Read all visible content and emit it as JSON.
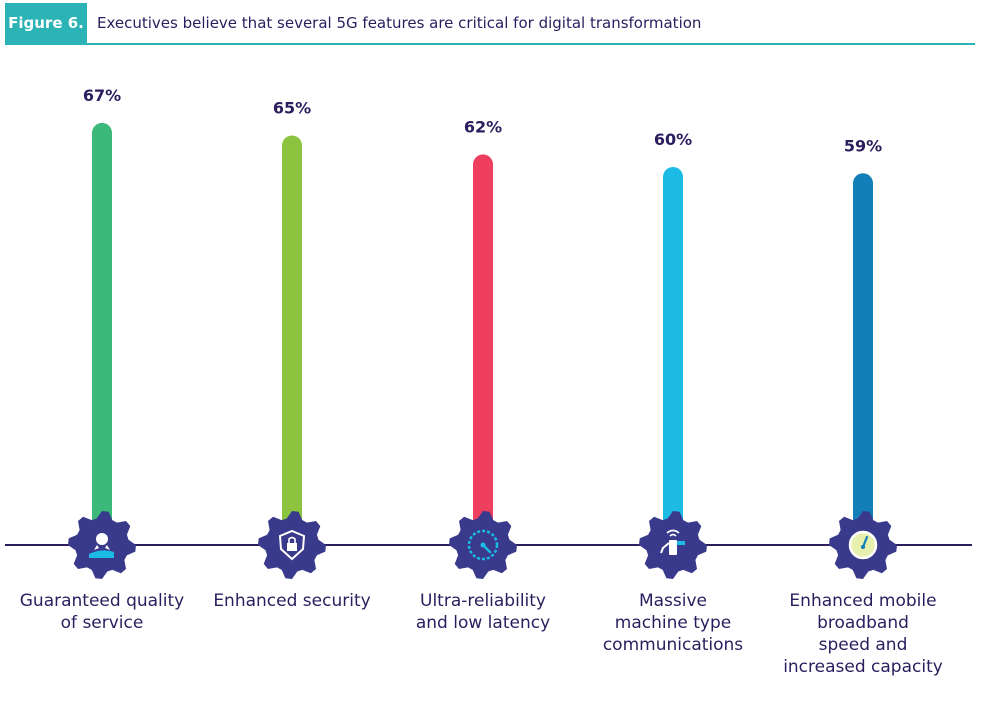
{
  "figure": {
    "tag": "Figure 6.",
    "title": "Executives believe that several 5G features are critical for digital transformation"
  },
  "chart_data": {
    "type": "bar",
    "title": "Executives believe that several 5G features are critical for digital transformation",
    "unit": "%",
    "categories": [
      "Guaranteed quality of service",
      "Enhanced security",
      "Ultra-reliability and low latency",
      "Massive machine type communications",
      "Enhanced mobile broadband speed and increased capacity"
    ],
    "values": [
      67,
      65,
      62,
      60,
      59
    ],
    "value_labels": [
      "67%",
      "65%",
      "62%",
      "60%",
      "59%"
    ],
    "colors": [
      "#3bb87a",
      "#8cc43f",
      "#ee3f5f",
      "#1bbbe6",
      "#127fb8"
    ],
    "icons": [
      "badge-hand-icon",
      "lock-shield-icon",
      "speedometer-icon",
      "robot-arm-wifi-icon",
      "gauge-icon"
    ],
    "gear_color": "#3a3a8c",
    "baseline_color": "#2b1d5e",
    "ylim": [
      0,
      100
    ]
  },
  "labels": [
    [
      "Guaranteed quality",
      "of service"
    ],
    [
      "Enhanced security"
    ],
    [
      "Ultra-reliability",
      "and low latency"
    ],
    [
      "Massive",
      "machine type",
      "communications"
    ],
    [
      "Enhanced mobile",
      "broadband",
      "speed and",
      "increased capacity"
    ]
  ]
}
